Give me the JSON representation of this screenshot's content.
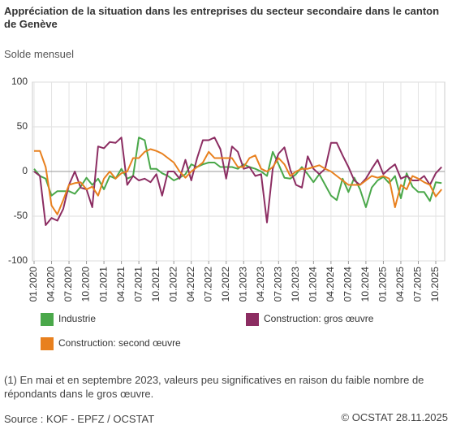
{
  "chart_data": {
    "type": "line",
    "title": "Appréciation de la situation dans les entreprises du secteur secondaire dans le canton de Genève",
    "subtitle": "Solde mensuel",
    "categories": [
      "01.2020",
      null,
      null,
      "04.2020",
      null,
      null,
      "07.2020",
      null,
      null,
      "10.2020",
      null,
      null,
      "01.2021",
      null,
      null,
      "04.2021",
      null,
      null,
      "07.2021",
      null,
      null,
      "10.2021",
      null,
      null,
      "01.2022",
      null,
      null,
      "04.2022",
      null,
      null,
      "07.2022",
      null,
      null,
      "10.2022",
      null,
      null,
      "01.2023",
      null,
      null,
      "04.2023",
      null,
      null,
      "07.2023",
      null,
      null,
      "10.2023",
      null,
      null,
      "01.2024",
      null,
      null,
      "04.2024",
      null,
      null,
      "07.2024",
      null,
      null,
      "10.2024",
      null,
      null,
      "01.2025",
      null,
      null,
      "04.2025",
      null,
      null,
      "07.2025",
      null,
      null,
      "10.2025",
      null
    ],
    "series": [
      {
        "name": "Industrie",
        "color": "#4aa84a",
        "values": [
          3,
          -5,
          -8,
          -27,
          -22,
          -22,
          -22,
          -25,
          -17,
          -7,
          -15,
          -8,
          -20,
          -5,
          -8,
          3,
          -8,
          -5,
          38,
          35,
          3,
          3,
          -2,
          -5,
          -10,
          -7,
          -3,
          8,
          5,
          8,
          10,
          10,
          5,
          5,
          5,
          3,
          8,
          5,
          3,
          0,
          -5,
          22,
          8,
          -7,
          -8,
          -3,
          5,
          -3,
          -12,
          -3,
          -15,
          -27,
          -32,
          -8,
          -23,
          -7,
          -20,
          -40,
          -18,
          -10,
          -6,
          -13,
          -5,
          -30,
          -2,
          -17,
          -23,
          -23,
          -33,
          -12,
          -13
        ]
      },
      {
        "name": "Construction: gros œuvre",
        "color": "#8c2d62",
        "values": [
          0,
          -5,
          -60,
          -52,
          -55,
          -42,
          -15,
          0,
          -18,
          -20,
          -40,
          28,
          26,
          33,
          32,
          38,
          -15,
          -5,
          -10,
          -8,
          -12,
          -3,
          -27,
          0,
          0,
          -8,
          13,
          -10,
          15,
          35,
          35,
          38,
          25,
          -8,
          28,
          22,
          3,
          5,
          -5,
          -3,
          -57,
          3,
          20,
          27,
          2,
          -15,
          -18,
          17,
          3,
          -3,
          3,
          32,
          32,
          18,
          5,
          -10,
          -15,
          -8,
          3,
          13,
          -3,
          3,
          8,
          -8,
          -5,
          -10,
          -10,
          -5,
          -15,
          -2,
          5
        ]
      },
      {
        "name": "Construction: second œuvre",
        "color": "#e8801e",
        "values": [
          23,
          23,
          5,
          -38,
          -48,
          -32,
          -15,
          -13,
          -12,
          -20,
          -17,
          -27,
          -8,
          0,
          -8,
          -2,
          0,
          15,
          15,
          22,
          25,
          23,
          20,
          15,
          10,
          0,
          -7,
          0,
          5,
          10,
          22,
          15,
          15,
          15,
          15,
          5,
          5,
          15,
          18,
          3,
          0,
          5,
          15,
          8,
          -5,
          0,
          3,
          3,
          5,
          7,
          3,
          0,
          -5,
          -10,
          -15,
          -15,
          -15,
          -10,
          -5,
          -7,
          -5,
          -8,
          -40,
          -15,
          -20,
          -5,
          -8,
          -12,
          -15,
          -28,
          -20
        ]
      }
    ],
    "ylim": [
      -100,
      100
    ],
    "yticks": [
      -100,
      -50,
      0,
      50,
      100
    ],
    "grid": true,
    "note": "(1) En mai et en septembre 2023, valeurs peu significatives en raison du faible nombre de répondants dans le gros œuvre.",
    "source": "Source : KOF - EPFZ / OCSTAT",
    "credit": "© OCSTAT 28.11.2025"
  }
}
